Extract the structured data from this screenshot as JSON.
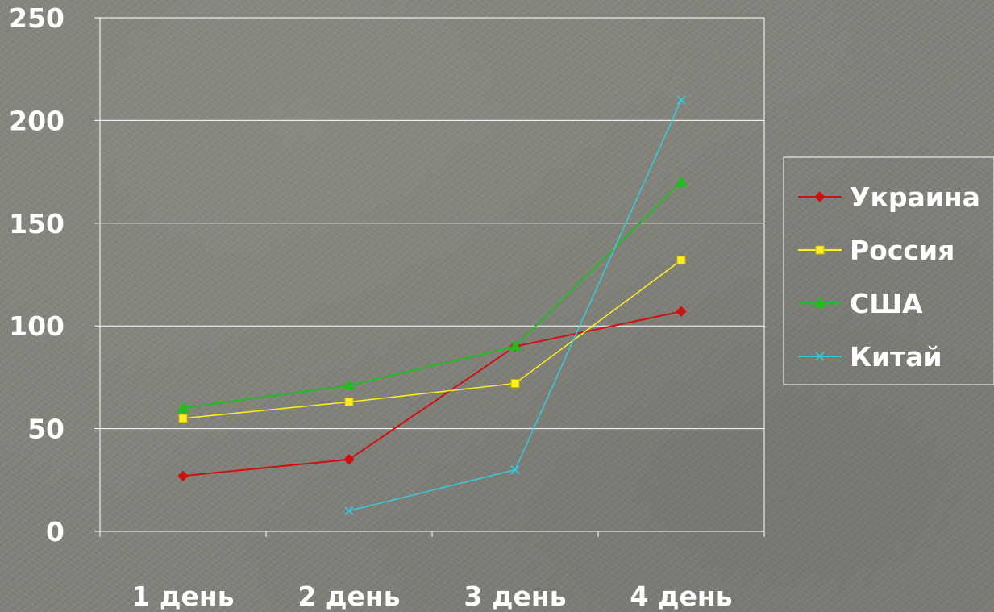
{
  "chart_data": {
    "type": "line",
    "categories": [
      "1 день",
      "2 день",
      "3 день",
      "4 день"
    ],
    "series": [
      {
        "name": "Украина",
        "color": "#cc1111",
        "marker": "diamond",
        "values": [
          27,
          35,
          90,
          107
        ]
      },
      {
        "name": "Россия",
        "color": "#ffee22",
        "marker": "square",
        "values": [
          55,
          63,
          72,
          132
        ]
      },
      {
        "name": "США",
        "color": "#22bb22",
        "marker": "triangle",
        "values": [
          60,
          71,
          90,
          170
        ]
      },
      {
        "name": "Китай",
        "color": "#33ccdd",
        "marker": "x",
        "values": [
          null,
          10,
          30,
          210
        ]
      }
    ],
    "y_ticks": [
      "0",
      "50",
      "100",
      "150",
      "200",
      "250"
    ],
    "ylim": [
      0,
      250
    ],
    "grid": true,
    "legend": "right"
  }
}
